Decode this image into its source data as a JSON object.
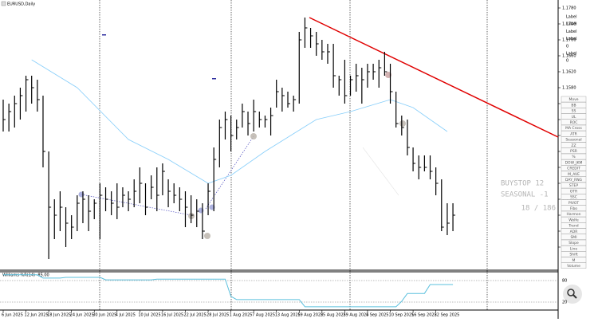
{
  "chart_data": {
    "type": "ohlc",
    "title": "EURUSD,Daily",
    "categories": [
      "6 Jun 2025",
      null,
      null,
      null,
      "12 Jun 2025",
      null,
      null,
      null,
      "18 Jun 2025",
      null,
      null,
      null,
      "24 Jun 2025",
      null,
      null,
      null,
      "30 Jun 2025",
      null,
      null,
      null,
      "4 Jul 2025",
      null,
      null,
      null,
      "10 Jul 2025",
      null,
      null,
      null,
      "16 Jul 2025",
      null,
      null,
      null,
      "22 Jul 2025",
      null,
      null,
      null,
      "28 Jul 2025",
      null,
      null,
      null,
      "1 Aug 2025",
      null,
      null,
      null,
      "7 Aug 2025",
      null,
      null,
      null,
      "13 Aug 2025",
      null,
      null,
      null,
      "19 Aug 2025",
      null,
      null,
      null,
      "25 Aug 2025",
      null,
      null,
      null,
      "29 Aug 2025",
      null,
      null,
      null,
      "4 Sep 2025",
      null,
      null,
      null,
      "10 Sep 2025",
      null,
      null,
      null,
      "16 Sep 2025",
      null,
      null,
      null,
      "22 Sep 2025",
      null,
      null,
      null
    ],
    "high": [
      1.155,
      1.154,
      1.156,
      1.158,
      1.161,
      1.161,
      1.16,
      1.156,
      1.142,
      1.13,
      1.132,
      1.128,
      1.126,
      1.131,
      1.132,
      1.131,
      1.13,
      1.134,
      1.133,
      1.132,
      1.134,
      1.133,
      1.132,
      1.135,
      1.138,
      1.134,
      1.136,
      1.138,
      1.139,
      1.135,
      1.134,
      1.133,
      1.132,
      1.131,
      1.13,
      1.129,
      1.134,
      1.143,
      1.15,
      1.152,
      1.151,
      1.15,
      1.154,
      1.152,
      1.155,
      1.152,
      1.151,
      1.153,
      1.16,
      1.158,
      1.157,
      1.156,
      1.172,
      1.1756,
      1.173,
      1.172,
      1.17,
      1.169,
      1.169,
      1.161,
      1.165,
      1.161,
      1.164,
      1.163,
      1.164,
      1.164,
      1.165,
      1.167,
      1.164,
      1.157,
      1.151,
      1.15,
      1.143,
      1.141,
      1.141,
      1.141,
      1.138,
      1.135,
      1.129,
      1.129
    ],
    "low": [
      1.147,
      1.147,
      1.148,
      1.15,
      1.152,
      1.154,
      1.152,
      1.138,
      1.115,
      1.12,
      1.122,
      1.118,
      1.12,
      1.122,
      1.124,
      1.122,
      1.125,
      1.12,
      1.127,
      1.126,
      1.125,
      1.128,
      1.127,
      1.128,
      1.129,
      1.126,
      1.13,
      1.127,
      1.131,
      1.128,
      1.129,
      1.127,
      1.123,
      1.124,
      1.123,
      1.12,
      1.126,
      1.127,
      1.138,
      1.145,
      1.142,
      1.145,
      1.148,
      1.146,
      1.147,
      1.148,
      1.148,
      1.146,
      1.153,
      1.152,
      1.153,
      1.152,
      1.154,
      1.168,
      1.168,
      1.166,
      1.165,
      1.164,
      1.158,
      1.156,
      1.154,
      1.156,
      1.157,
      1.154,
      1.158,
      1.16,
      1.158,
      1.161,
      1.154,
      1.148,
      1.146,
      1.141,
      1.137,
      1.135,
      1.137,
      1.135,
      1.131,
      1.122,
      1.121,
      1.122
    ],
    "close": [
      1.15,
      1.152,
      1.154,
      1.156,
      1.16,
      1.158,
      1.155,
      1.142,
      1.128,
      1.126,
      1.128,
      1.124,
      1.123,
      1.129,
      1.13,
      1.127,
      1.129,
      1.131,
      1.13,
      1.129,
      1.128,
      1.131,
      1.13,
      1.132,
      1.134,
      1.128,
      1.133,
      1.131,
      1.137,
      1.132,
      1.131,
      1.13,
      1.128,
      1.126,
      1.127,
      1.122,
      1.132,
      1.14,
      1.148,
      1.15,
      1.146,
      1.148,
      1.152,
      1.149,
      1.152,
      1.15,
      1.15,
      1.151,
      1.157,
      1.156,
      1.154,
      1.155,
      1.17,
      1.173,
      1.171,
      1.169,
      1.167,
      1.167,
      1.161,
      1.16,
      1.156,
      1.16,
      1.161,
      1.16,
      1.162,
      1.162,
      1.163,
      1.162,
      1.157,
      1.149,
      1.148,
      1.143,
      1.139,
      1.138,
      1.138,
      1.137,
      1.134,
      1.123,
      1.124,
      1.126
    ],
    "color": "#000000",
    "ma": {
      "color": "#87cefa",
      "x": [
        5,
        13,
        22,
        29,
        36,
        40,
        46,
        55,
        61,
        68,
        72,
        78
      ],
      "values": [
        1.165,
        1.158,
        1.145,
        1.14,
        1.134,
        1.136,
        1.142,
        1.15,
        1.152,
        1.155,
        1.153,
        1.147
      ]
    },
    "ylim": [
      1.114,
      1.18
    ],
    "yticks": [
      {
        "value": 1.178,
        "label": "1.1780"
      },
      {
        "value": 1.174,
        "label": "1.1740"
      },
      {
        "value": 1.17,
        "label": "1.1700"
      },
      {
        "value": 1.166,
        "label": "1.1660"
      },
      {
        "value": 1.162,
        "label": "1.1620"
      },
      {
        "value": 1.158,
        "label": "1.1580"
      },
      {
        "value": 1.154,
        "label": "1.1540"
      },
      {
        "value": 1.15,
        "label": "1.1500"
      },
      {
        "value": 1.146,
        "label": "1.1460"
      },
      {
        "value": 1.142,
        "label": "1.1420"
      },
      {
        "value": 1.138,
        "label": "1.1380"
      },
      {
        "value": 1.134,
        "label": "1.1340"
      },
      {
        "value": 1.13,
        "label": "1.1300"
      },
      {
        "value": 1.126,
        "label": "1.1260"
      },
      {
        "value": 1.122,
        "label": "1.1220"
      },
      {
        "value": 1.118,
        "label": "1.1180"
      }
    ],
    "indicator": {
      "title": "Williams %R(14) -85.00",
      "color": "#5bc0de",
      "values": [
        96,
        96,
        96,
        96,
        96,
        96,
        96,
        87,
        87,
        87,
        87,
        89,
        89,
        89,
        89,
        89,
        89,
        89,
        82,
        82,
        82,
        82,
        82,
        82,
        82,
        82,
        82,
        84,
        84,
        84,
        84,
        84,
        84,
        84,
        84,
        84,
        84,
        84,
        84,
        84,
        36,
        27,
        27,
        27,
        27,
        27,
        27,
        27,
        27,
        27,
        27,
        27,
        27,
        7,
        7,
        7,
        7,
        7,
        7,
        7,
        7,
        7,
        7,
        7,
        7,
        7,
        7,
        7,
        7,
        7,
        22,
        44,
        44,
        44,
        44,
        69,
        69,
        69,
        69,
        69
      ],
      "ylim": [
        0,
        100
      ],
      "yticks": [
        80,
        20
      ]
    }
  },
  "toolbar": {
    "buttons": [
      "Move",
      "BB",
      "SS",
      "UL",
      "ROC",
      "MA Cross",
      "ATR",
      "Seasonal",
      "ZZ",
      "PSR",
      "%",
      "DOW_JKM",
      "CREDIT",
      "M_AVE",
      "DAY_RNG",
      "STEP",
      "OTR",
      "SSC",
      "PIVOT",
      "Fibo",
      "Harmon",
      "Wolfe",
      "Trend",
      "ADR",
      "SMI",
      "Slope",
      "Line",
      "Shift",
      "M",
      "Volume"
    ]
  },
  "labels": [
    "Label",
    "Label",
    "Label",
    "Label",
    "0",
    "Label",
    "0"
  ],
  "signal": {
    "line1": "BUYSTOP 12",
    "line2": "SEASONAL -1",
    "counter": "18 / 186"
  }
}
